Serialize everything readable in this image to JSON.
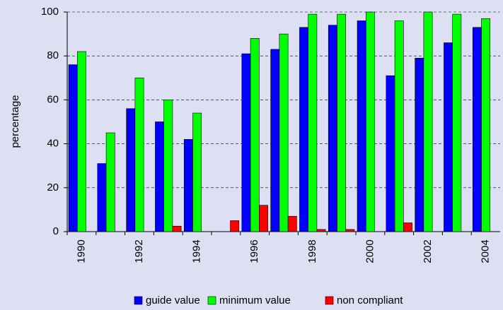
{
  "chart_data": {
    "type": "bar",
    "categories": [
      "1990",
      null,
      "1992",
      null,
      "1994",
      null,
      "1996",
      null,
      "1998",
      null,
      "2000",
      null,
      "2002",
      null,
      "2004"
    ],
    "series": [
      {
        "name": "guide value",
        "color": "#0000ff",
        "values": [
          76,
          31,
          56,
          50,
          42,
          null,
          81,
          83,
          93,
          94,
          96,
          71,
          79,
          86,
          93
        ]
      },
      {
        "name": "minimum value",
        "color": "#00ff00",
        "values": [
          82,
          45,
          70,
          60,
          54,
          null,
          88,
          90,
          99,
          99,
          100,
          96,
          100,
          99,
          97
        ]
      },
      {
        "name": "non compliant",
        "color": "#ff0000",
        "values": [
          0,
          0,
          0,
          2.5,
          0,
          5,
          12,
          7,
          1,
          1,
          0,
          4,
          0,
          0,
          0
        ]
      }
    ],
    "ylabel": "percentage",
    "ylim": [
      0,
      100
    ],
    "yticks": [
      0,
      20,
      40,
      60,
      80,
      100
    ],
    "grid": true,
    "legend": "bottom"
  }
}
